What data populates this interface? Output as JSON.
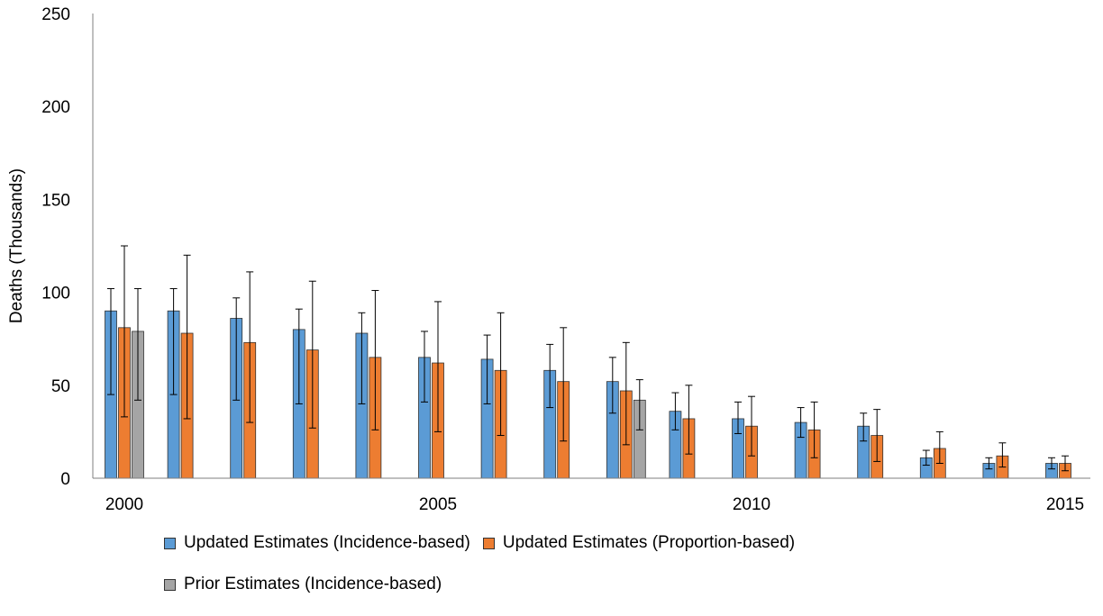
{
  "chart_data": {
    "type": "bar",
    "title": "",
    "xlabel": "",
    "ylabel": "Deaths (Thousands)",
    "ylim": [
      0,
      250
    ],
    "yticks": [
      "0",
      "50",
      "100",
      "150",
      "200",
      "250"
    ],
    "xtick_labels": [
      "2000",
      "2005",
      "2010",
      "2015"
    ],
    "xtick_years": [
      2000,
      2005,
      2010,
      2015
    ],
    "categories": [
      2000,
      2001,
      2002,
      2003,
      2004,
      2005,
      2006,
      2007,
      2008,
      2009,
      2010,
      2011,
      2012,
      2013,
      2014,
      2015
    ],
    "grid": false,
    "legend_position": "bottom",
    "series": [
      {
        "name": "Updated Estimates (Incidence-based)",
        "color": "#5b9bd5",
        "values": [
          90,
          90,
          86,
          80,
          78,
          65,
          64,
          58,
          52,
          36,
          32,
          30,
          28,
          11,
          8,
          8
        ],
        "lower": [
          45,
          45,
          42,
          40,
          40,
          41,
          40,
          38,
          35,
          26,
          24,
          22,
          20,
          7,
          5,
          5
        ],
        "upper": [
          102,
          102,
          97,
          91,
          89,
          79,
          77,
          72,
          65,
          46,
          41,
          38,
          35,
          15,
          11,
          11
        ]
      },
      {
        "name": "Updated Estimates (Proportion-based)",
        "color": "#ed7d31",
        "values": [
          81,
          78,
          73,
          69,
          65,
          62,
          58,
          52,
          47,
          32,
          28,
          26,
          23,
          16,
          12,
          8
        ],
        "lower": [
          33,
          32,
          30,
          27,
          26,
          25,
          23,
          20,
          18,
          13,
          12,
          11,
          9,
          8,
          6,
          4
        ],
        "upper": [
          125,
          120,
          111,
          106,
          101,
          95,
          89,
          81,
          73,
          50,
          44,
          41,
          37,
          25,
          19,
          12
        ]
      },
      {
        "name": "Prior Estimates (Incidence-based)",
        "color": "#a5a5a5",
        "values": [
          79,
          null,
          null,
          null,
          null,
          null,
          null,
          null,
          42,
          null,
          null,
          null,
          null,
          null,
          null,
          null
        ],
        "lower": [
          42,
          null,
          null,
          null,
          null,
          null,
          null,
          null,
          26,
          null,
          null,
          null,
          null,
          null,
          null,
          null
        ],
        "upper": [
          102,
          null,
          null,
          null,
          null,
          null,
          null,
          null,
          53,
          null,
          null,
          null,
          null,
          null,
          null,
          null
        ]
      }
    ]
  }
}
